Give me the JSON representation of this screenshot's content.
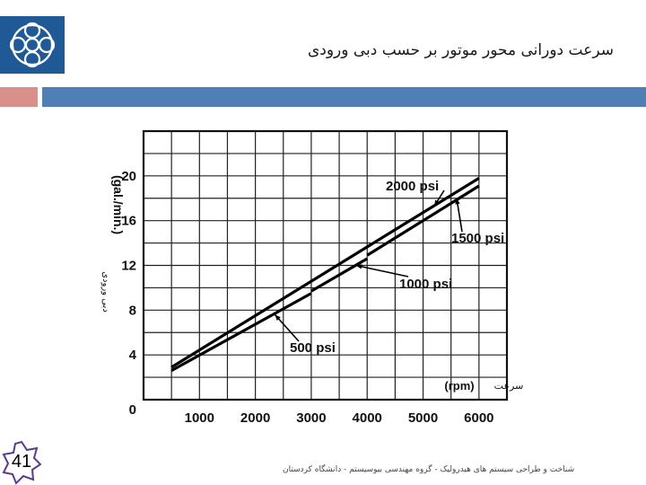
{
  "header": {
    "title": "سرعت دورانی محور موتور بر حسب دبی ورودی",
    "logo_icon": "university-logo-icon"
  },
  "slide_number": "41",
  "footer": {
    "text": "شناخت و طراحی سیستم های هیدرولیک - گروه مهندسی بیوسیستم - دانشگاه کردستان"
  },
  "colors": {
    "header_blue": "#4f7fb5",
    "header_pink": "#d98f8a",
    "logo_blue": "#1f5a96"
  },
  "chart_data": {
    "type": "line",
    "ylabel": "(gal./min.)",
    "ylabel_fa": "دبی ورودی",
    "xlabel": "(rpm)",
    "xlabel_fa": "سرعت",
    "xlim": [
      0,
      6500
    ],
    "ylim": [
      0,
      24
    ],
    "x_ticks": [
      1000,
      2000,
      3000,
      4000,
      5000,
      6000
    ],
    "y_ticks": [
      0,
      4,
      8,
      12,
      16,
      20
    ],
    "grid": true,
    "series": [
      {
        "name": "500 psi",
        "points": [
          [
            500,
            2.6
          ],
          [
            3000,
            9.5
          ]
        ]
      },
      {
        "name": "1000 psi",
        "points": [
          [
            3000,
            9.7
          ],
          [
            4000,
            12.6
          ]
        ]
      },
      {
        "name": "1500 psi",
        "points": [
          [
            4000,
            12.9
          ],
          [
            6000,
            19.1
          ]
        ]
      },
      {
        "name": "2000 psi",
        "points": [
          [
            500,
            2.9
          ],
          [
            6000,
            19.8
          ]
        ]
      }
    ],
    "annotations": [
      {
        "text": "2000 psi",
        "target": [
          5200,
          17.3
        ]
      },
      {
        "text": "1500 psi",
        "target": [
          5600,
          18.0
        ]
      },
      {
        "text": "1000 psi",
        "target": [
          3800,
          12.0
        ]
      },
      {
        "text": "500 psi",
        "target": [
          2350,
          7.6
        ]
      }
    ]
  }
}
